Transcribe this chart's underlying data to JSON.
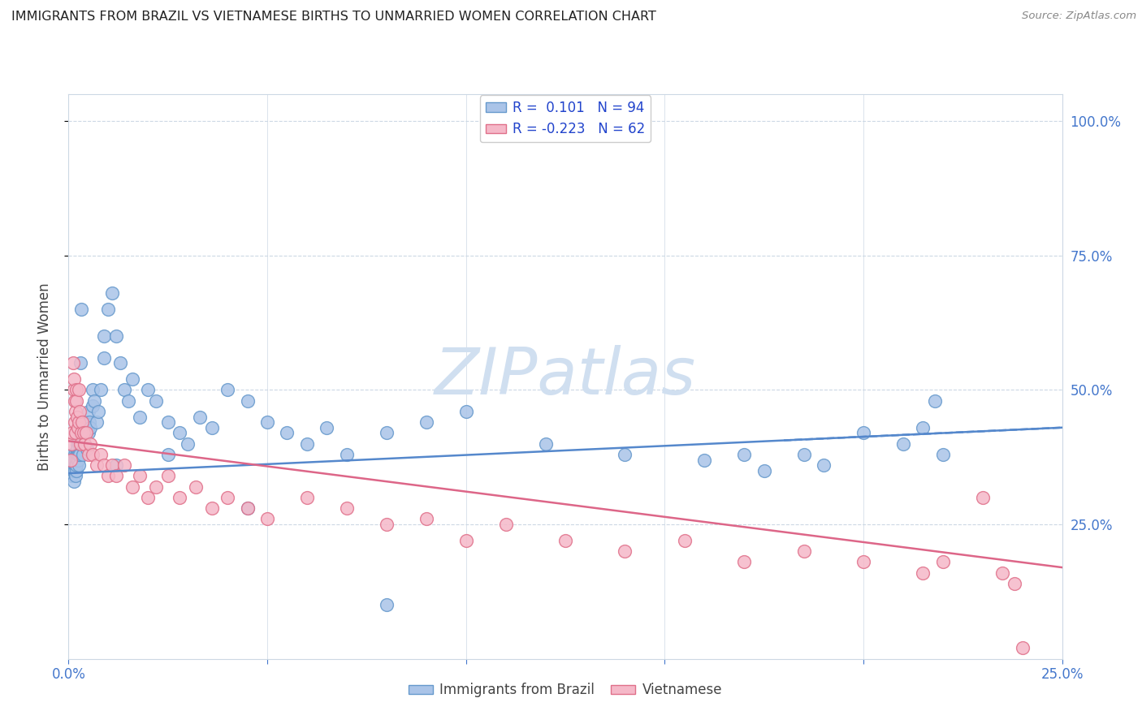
{
  "title": "IMMIGRANTS FROM BRAZIL VS VIETNAMESE BIRTHS TO UNMARRIED WOMEN CORRELATION CHART",
  "source": "Source: ZipAtlas.com",
  "legend_label1": "Immigrants from Brazil",
  "legend_label2": "Vietnamese",
  "R1": 0.101,
  "N1": 94,
  "R2": -0.223,
  "N2": 62,
  "color_brazil_fill": "#aac4e8",
  "color_brazil_edge": "#6699cc",
  "color_vietnamese_fill": "#f5b8c8",
  "color_vietnamese_edge": "#e0708a",
  "color_trendline_brazil": "#5588cc",
  "color_trendline_viet": "#dd6688",
  "watermark_color": "#d0dff0",
  "ylabel": "Births to Unmarried Women",
  "background_color": "#ffffff",
  "grid_color": "#ccd8e4",
  "title_color": "#222222",
  "axis_label_color": "#4477cc",
  "brazil_x": [
    0.0005,
    0.0007,
    0.001,
    0.001,
    0.0012,
    0.0012,
    0.0013,
    0.0014,
    0.0015,
    0.0015,
    0.0016,
    0.0016,
    0.0017,
    0.0018,
    0.0018,
    0.0019,
    0.002,
    0.002,
    0.002,
    0.0021,
    0.0022,
    0.0022,
    0.0023,
    0.0024,
    0.0025,
    0.0025,
    0.0026,
    0.0027,
    0.0028,
    0.003,
    0.003,
    0.0032,
    0.0034,
    0.0035,
    0.0036,
    0.0038,
    0.004,
    0.004,
    0.0042,
    0.0044,
    0.0046,
    0.005,
    0.005,
    0.0052,
    0.0055,
    0.006,
    0.006,
    0.0065,
    0.007,
    0.0075,
    0.008,
    0.009,
    0.009,
    0.01,
    0.011,
    0.012,
    0.013,
    0.014,
    0.015,
    0.016,
    0.018,
    0.02,
    0.022,
    0.025,
    0.028,
    0.03,
    0.033,
    0.036,
    0.04,
    0.045,
    0.05,
    0.055,
    0.06,
    0.065,
    0.07,
    0.08,
    0.09,
    0.1,
    0.12,
    0.14,
    0.16,
    0.175,
    0.185,
    0.19,
    0.2,
    0.21,
    0.215,
    0.218,
    0.22,
    0.17,
    0.08,
    0.045,
    0.025,
    0.012
  ],
  "brazil_y": [
    0.36,
    0.34,
    0.38,
    0.36,
    0.35,
    0.37,
    0.33,
    0.35,
    0.36,
    0.38,
    0.37,
    0.35,
    0.36,
    0.34,
    0.36,
    0.38,
    0.37,
    0.35,
    0.36,
    0.38,
    0.4,
    0.39,
    0.37,
    0.38,
    0.4,
    0.36,
    0.38,
    0.42,
    0.38,
    0.4,
    0.55,
    0.65,
    0.42,
    0.4,
    0.38,
    0.42,
    0.44,
    0.4,
    0.42,
    0.44,
    0.39,
    0.46,
    0.42,
    0.44,
    0.43,
    0.5,
    0.47,
    0.48,
    0.44,
    0.46,
    0.5,
    0.6,
    0.56,
    0.65,
    0.68,
    0.6,
    0.55,
    0.5,
    0.48,
    0.52,
    0.45,
    0.5,
    0.48,
    0.44,
    0.42,
    0.4,
    0.45,
    0.43,
    0.5,
    0.48,
    0.44,
    0.42,
    0.4,
    0.43,
    0.38,
    0.42,
    0.44,
    0.46,
    0.4,
    0.38,
    0.37,
    0.35,
    0.38,
    0.36,
    0.42,
    0.4,
    0.43,
    0.48,
    0.38,
    0.38,
    0.1,
    0.28,
    0.38,
    0.36
  ],
  "vietnamese_x": [
    0.0005,
    0.0007,
    0.001,
    0.0012,
    0.0013,
    0.0014,
    0.0015,
    0.0016,
    0.0017,
    0.0018,
    0.002,
    0.002,
    0.0022,
    0.0023,
    0.0025,
    0.0026,
    0.0028,
    0.003,
    0.0032,
    0.0035,
    0.0038,
    0.004,
    0.0045,
    0.005,
    0.0055,
    0.006,
    0.007,
    0.008,
    0.009,
    0.01,
    0.011,
    0.012,
    0.014,
    0.016,
    0.018,
    0.02,
    0.022,
    0.025,
    0.028,
    0.032,
    0.036,
    0.04,
    0.045,
    0.05,
    0.06,
    0.07,
    0.08,
    0.09,
    0.1,
    0.11,
    0.125,
    0.14,
    0.155,
    0.17,
    0.185,
    0.2,
    0.215,
    0.22,
    0.23,
    0.235,
    0.238,
    0.24
  ],
  "vietnamese_y": [
    0.37,
    0.4,
    0.42,
    0.55,
    0.5,
    0.52,
    0.48,
    0.44,
    0.42,
    0.46,
    0.5,
    0.48,
    0.45,
    0.43,
    0.5,
    0.44,
    0.46,
    0.4,
    0.42,
    0.44,
    0.42,
    0.4,
    0.42,
    0.38,
    0.4,
    0.38,
    0.36,
    0.38,
    0.36,
    0.34,
    0.36,
    0.34,
    0.36,
    0.32,
    0.34,
    0.3,
    0.32,
    0.34,
    0.3,
    0.32,
    0.28,
    0.3,
    0.28,
    0.26,
    0.3,
    0.28,
    0.25,
    0.26,
    0.22,
    0.25,
    0.22,
    0.2,
    0.22,
    0.18,
    0.2,
    0.18,
    0.16,
    0.18,
    0.3,
    0.16,
    0.14,
    0.02
  ],
  "xlim": [
    0.0,
    0.25
  ],
  "ylim": [
    0.0,
    1.05
  ],
  "yticks": [
    0.25,
    0.5,
    0.75,
    1.0
  ]
}
